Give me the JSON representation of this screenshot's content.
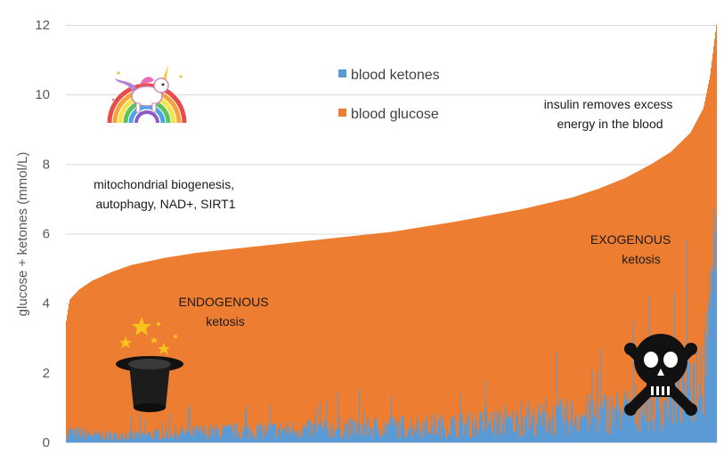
{
  "chart_data": {
    "type": "area",
    "title": "",
    "xlabel": "",
    "ylabel": "glucose + ketones (mmol/L)",
    "ylim": [
      0,
      12
    ],
    "yticks": [
      0,
      2,
      4,
      6,
      8,
      10,
      12
    ],
    "grid": true,
    "legend_position": "top-center",
    "stacked": true,
    "series": [
      {
        "name": "blood ketones",
        "color": "#5b9bd5",
        "profile_x": [
          0,
          0.05,
          0.1,
          0.2,
          0.3,
          0.4,
          0.5,
          0.6,
          0.7,
          0.75,
          0.8,
          0.85,
          0.9,
          0.93,
          0.96,
          0.98,
          1.0
        ],
        "profile_y": [
          0.3,
          0.2,
          0.2,
          0.3,
          0.35,
          0.4,
          0.45,
          0.5,
          0.6,
          0.7,
          0.8,
          0.9,
          1.1,
          1.3,
          1.6,
          2.2,
          7.5
        ]
      },
      {
        "name": "blood glucose",
        "color": "#ed7d31",
        "total_profile_x": [
          0,
          0.005,
          0.02,
          0.04,
          0.07,
          0.1,
          0.15,
          0.2,
          0.3,
          0.4,
          0.5,
          0.6,
          0.7,
          0.78,
          0.82,
          0.86,
          0.9,
          0.93,
          0.96,
          0.98,
          0.99,
          1.0
        ],
        "total_profile_y": [
          3.5,
          4.1,
          4.4,
          4.65,
          4.9,
          5.1,
          5.3,
          5.45,
          5.65,
          5.85,
          6.05,
          6.35,
          6.7,
          7.05,
          7.3,
          7.6,
          8.0,
          8.35,
          8.9,
          9.6,
          10.5,
          12.0
        ]
      }
    ],
    "annotations": {
      "mito_line1": "mitochondrial biogenesis,",
      "mito_line2": "autophagy, NAD+, SIRT1",
      "insulin_line1": "insulin removes excess",
      "insulin_line2": "energy in the blood",
      "endo_line1": "ENDOGENOUS",
      "endo_line2": "ketosis",
      "exo_line1": "EXOGENOUS",
      "exo_line2": "ketosis"
    },
    "icons": [
      "unicorn-icon",
      "magic-hat-icon",
      "skull-crossbones-icon"
    ]
  }
}
